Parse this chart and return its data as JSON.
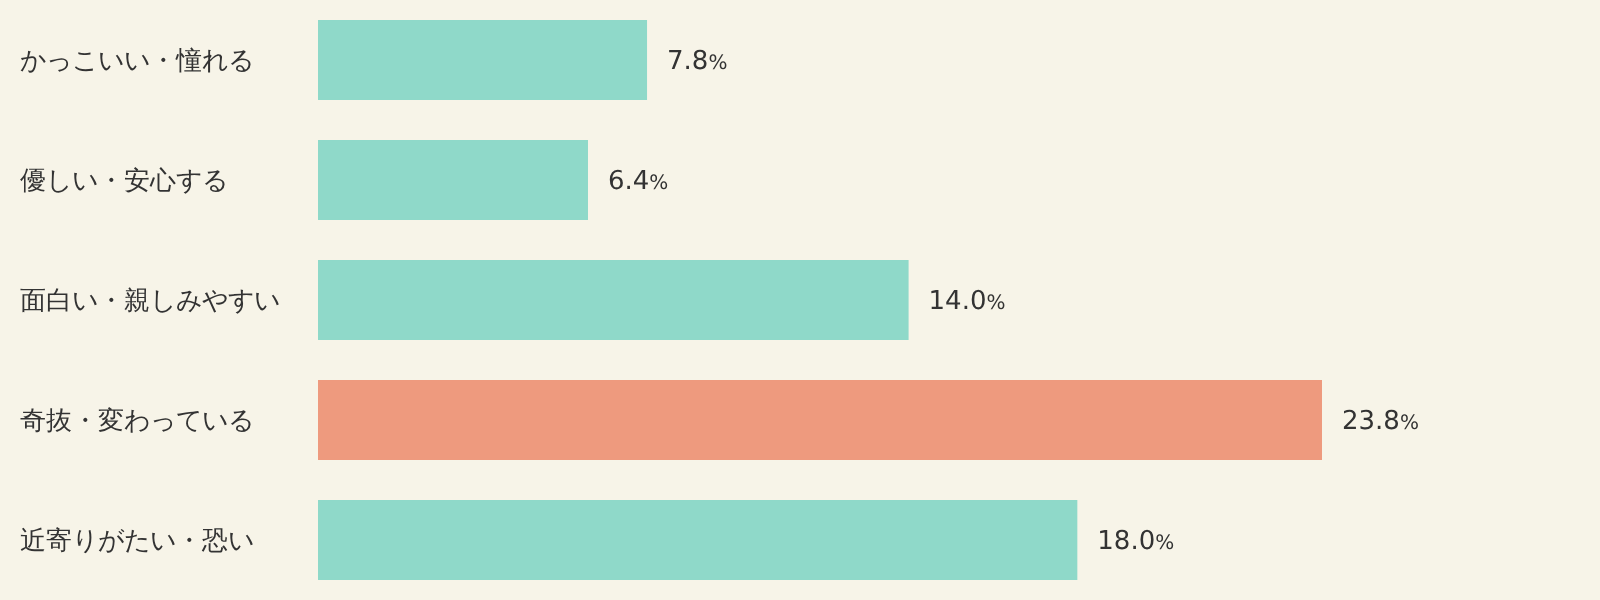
{
  "chart_data": {
    "type": "bar",
    "orientation": "horizontal",
    "categories": [
      "かっこいい・憧れる",
      "優しい・安心する",
      "面白い・親しみやすい",
      "奇抜・変わっている",
      "近寄りがたい・恐い"
    ],
    "values": [
      7.8,
      6.4,
      14.0,
      23.8,
      18.0
    ],
    "colors": [
      "#8fd9c9",
      "#8fd9c9",
      "#8fd9c9",
      "#ee9a7e",
      "#8fd9c9"
    ],
    "value_labels": [
      "7.8%",
      "6.4%",
      "14.0%",
      "23.8%",
      "18.0%"
    ]
  }
}
